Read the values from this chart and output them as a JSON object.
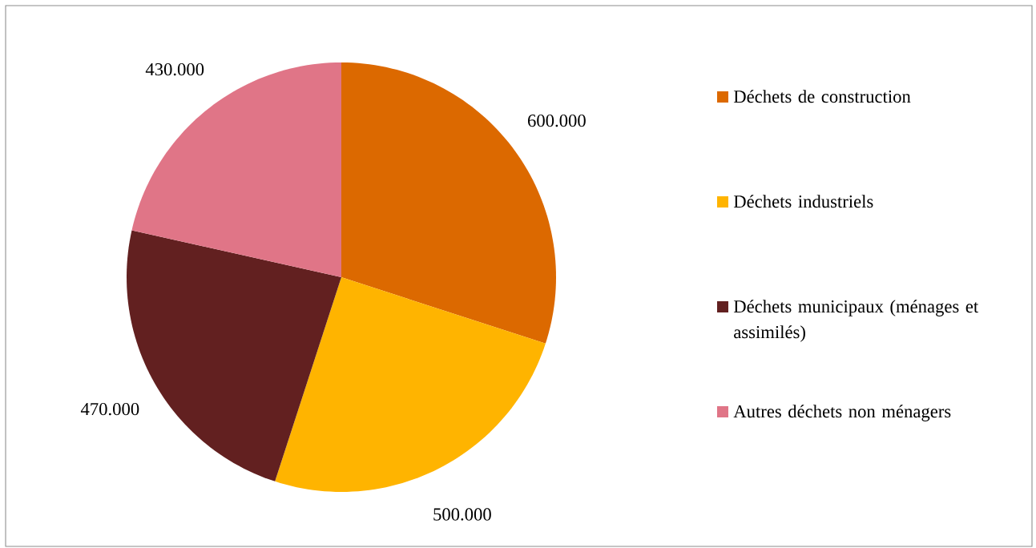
{
  "chart_data": {
    "type": "pie",
    "categories": [
      "Déchets de construction",
      "Déchets industriels",
      "Déchets municipaux (ménages et assimilés)",
      "Autres déchets non ménagers"
    ],
    "values": [
      600000,
      500000,
      470000,
      430000
    ],
    "value_labels": [
      "600.000",
      "500.000",
      "470.000",
      "430.000"
    ],
    "colors": [
      "#dc6900",
      "#ffb400",
      "#622020",
      "#e07587"
    ],
    "legend": "right"
  }
}
